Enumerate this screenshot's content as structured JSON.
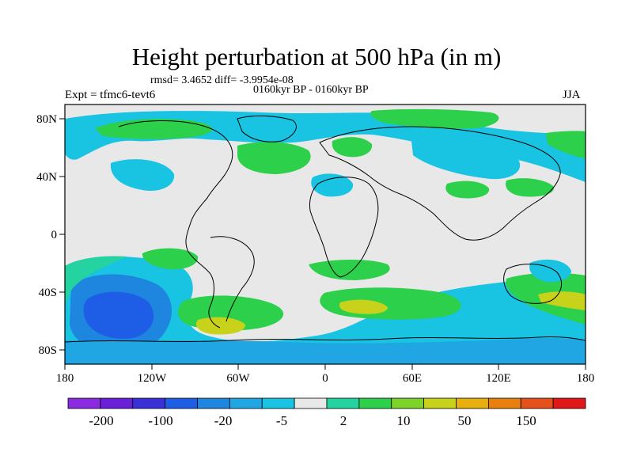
{
  "title": "Height perturbation at 500 hPa (in m)",
  "stats_line": "rmsd= 3.4652 diff= -3.9954e-08",
  "experiment_line": "Expt = tfmc6-tevt6",
  "period_line": "0160kyr BP - 0160kyr BP",
  "season": "JJA",
  "lat_labels": [
    "80N",
    "40N",
    "0",
    "40S",
    "80S"
  ],
  "lon_labels": [
    "180",
    "120W",
    "60W",
    "0",
    "60E",
    "120E",
    "180"
  ],
  "colorbar": {
    "labels": [
      "-200",
      "-100",
      "-20",
      "-5",
      "2",
      "10",
      "50",
      "150"
    ],
    "colors": [
      "#8a2be2",
      "#6a1fd8",
      "#3a30d8",
      "#1e5ee6",
      "#1f86e0",
      "#20a6e3",
      "#19c3e2",
      "#e8e8e8",
      "#25d3a0",
      "#2cd04a",
      "#7ed32a",
      "#c8d21a",
      "#e8b00e",
      "#e88010",
      "#e6501a",
      "#e01818"
    ]
  },
  "colors": {
    "ocean_gray": "#e8e8e8",
    "light_blue": "#19c3e2",
    "mid_blue": "#20a6e3",
    "blue": "#1f86e0",
    "deep_blue": "#1e5ee6",
    "teal_green": "#25d3a0",
    "green": "#2cd04a",
    "yellow_green": "#c8d21a"
  }
}
